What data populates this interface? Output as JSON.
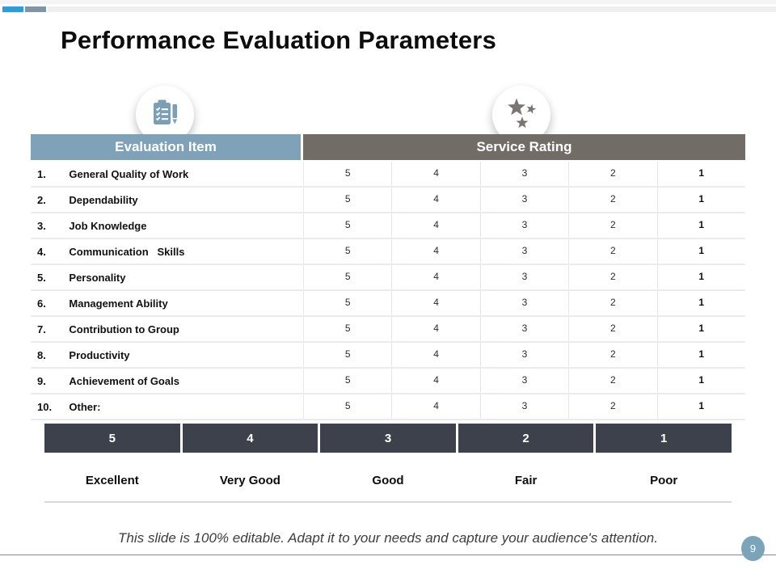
{
  "slide": {
    "title": "Performance Evaluation Parameters",
    "footer_note": "This slide is 100% editable. Adapt it to your needs and capture your audience's attention.",
    "page_number": "9"
  },
  "table": {
    "headers": {
      "item": "Evaluation Item",
      "rating": "Service Rating"
    },
    "rows": [
      {
        "num": "1.",
        "label": "General Quality of Work",
        "ratings": [
          "5",
          "4",
          "3",
          "2",
          "1"
        ]
      },
      {
        "num": "2.",
        "label": "Dependability",
        "ratings": [
          "5",
          "4",
          "3",
          "2",
          "1"
        ]
      },
      {
        "num": "3.",
        "label": "Job Knowledge",
        "ratings": [
          "5",
          "4",
          "3",
          "2",
          "1"
        ]
      },
      {
        "num": "4.",
        "label": "Communication   Skills",
        "ratings": [
          "5",
          "4",
          "3",
          "2",
          "1"
        ]
      },
      {
        "num": "5.",
        "label": "Personality",
        "ratings": [
          "5",
          "4",
          "3",
          "2",
          "1"
        ]
      },
      {
        "num": "6.",
        "label": "Management Ability",
        "ratings": [
          "5",
          "4",
          "3",
          "2",
          "1"
        ]
      },
      {
        "num": "7.",
        "label": "Contribution to Group",
        "ratings": [
          "5",
          "4",
          "3",
          "2",
          "1"
        ]
      },
      {
        "num": "8.",
        "label": "Productivity",
        "ratings": [
          "5",
          "4",
          "3",
          "2",
          "1"
        ]
      },
      {
        "num": "9.",
        "label": "Achievement of Goals",
        "ratings": [
          "5",
          "4",
          "3",
          "2",
          "1"
        ]
      },
      {
        "num": "10.",
        "label": "Other:",
        "ratings": [
          "5",
          "4",
          "3",
          "2",
          "1"
        ]
      }
    ]
  },
  "scale": {
    "values": [
      "5",
      "4",
      "3",
      "2",
      "1"
    ],
    "labels": [
      "Excellent",
      "Very Good",
      "Good",
      "Fair",
      "Poor"
    ]
  },
  "icons": {
    "left": "clipboard-checklist-icon",
    "right": "stars-icon"
  },
  "colors": {
    "header_item": "#7fa2b8",
    "header_rating": "#726c67",
    "scale_cell": "#3d414b",
    "accent_blue": "#2f9cd6",
    "accent_gray": "#8295a4",
    "page_badge": "#7ba3ba",
    "icon_blue": "#7d9eb4",
    "icon_gray": "#7b7572"
  }
}
